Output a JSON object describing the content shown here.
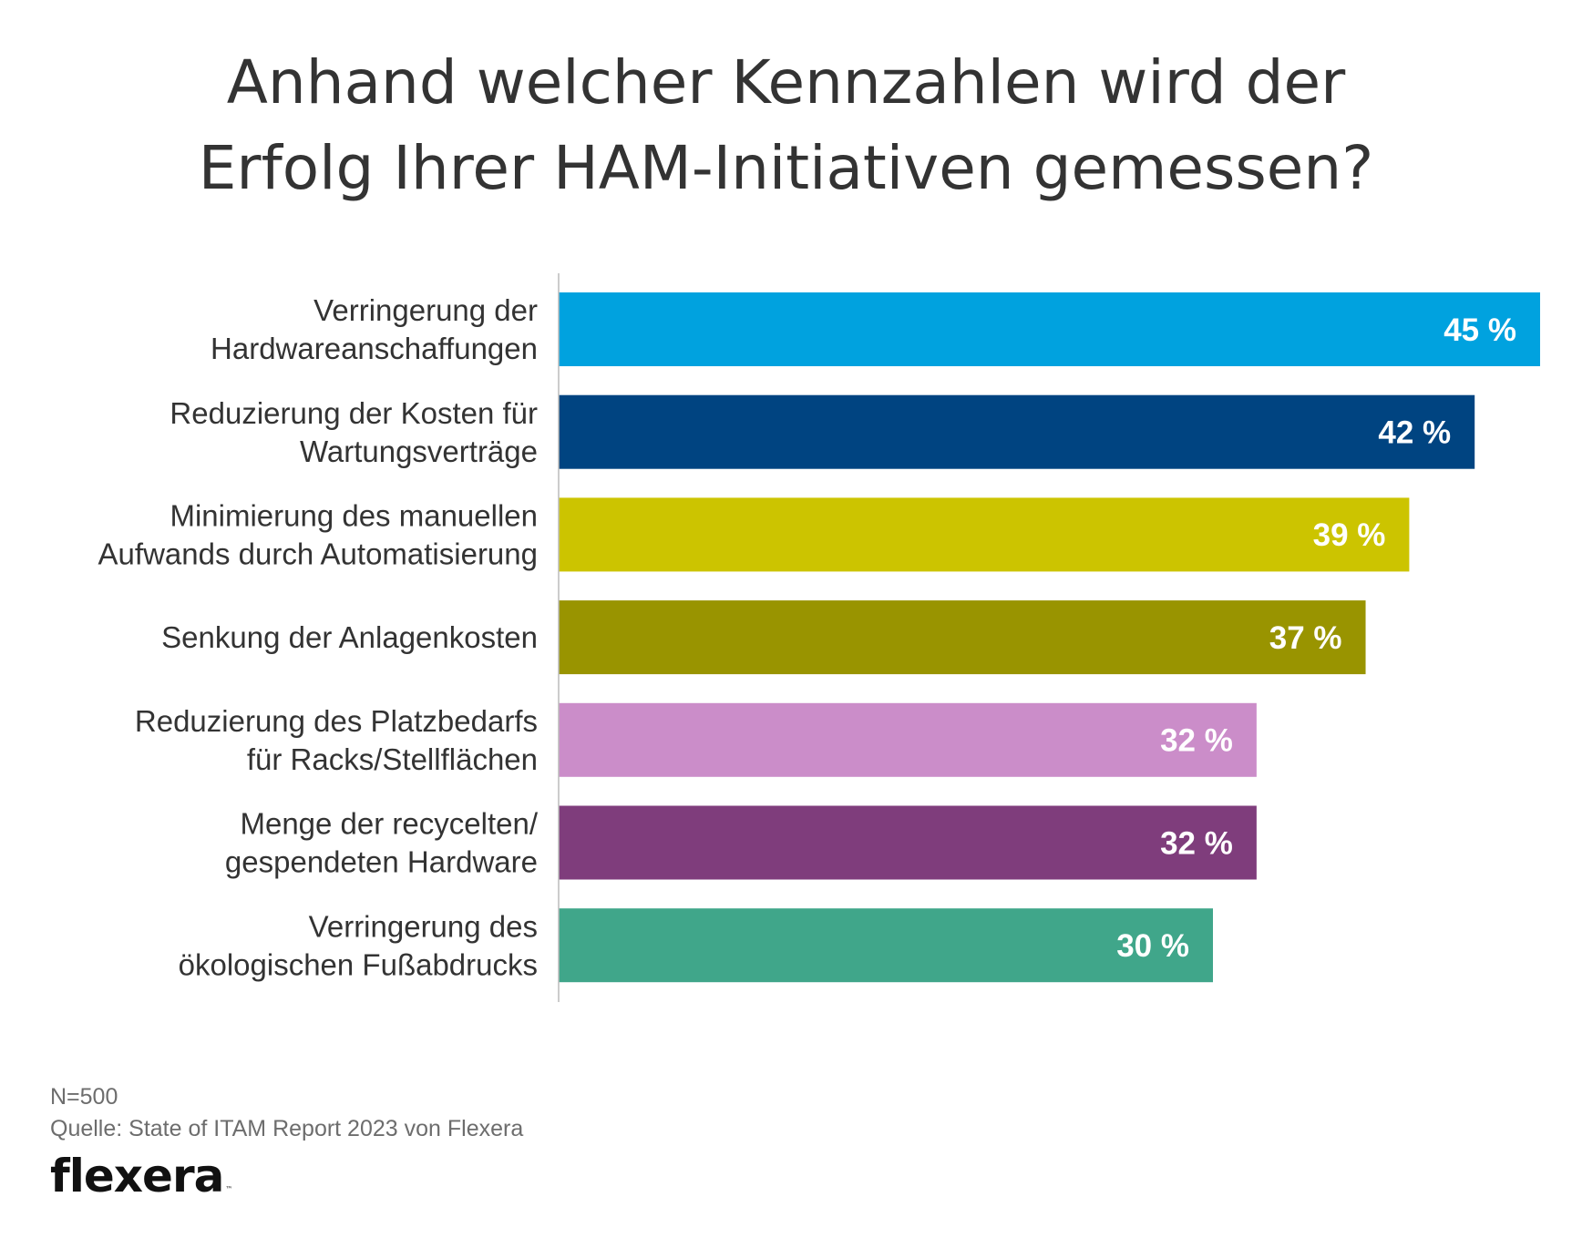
{
  "title_lines": [
    "Anhand welcher Kennzahlen wird der",
    "Erfolg Ihrer HAM-Initiativen gemessen?"
  ],
  "chart_data": {
    "type": "bar",
    "orientation": "horizontal",
    "title": "Anhand welcher Kennzahlen wird der Erfolg Ihrer HAM-Initiativen gemessen?",
    "categories": [
      [
        "Verringerung der",
        "Hardwareanschaffungen"
      ],
      [
        "Reduzierung der Kosten für",
        "Wartungsverträge"
      ],
      [
        "Minimierung des manuellen",
        "Aufwands durch Automatisierung"
      ],
      [
        "Senkung der Anlagenkosten"
      ],
      [
        "Reduzierung des Platzbedarfs",
        "für Racks/Stellflächen"
      ],
      [
        "Menge der recycelten/",
        "gespendeten Hardware"
      ],
      [
        "Verringerung des",
        "ökologischen Fußabdrucks"
      ]
    ],
    "values": [
      45,
      42,
      39,
      37,
      32,
      32,
      30
    ],
    "value_labels": [
      "45 %",
      "42 %",
      "39 %",
      "37 %",
      "32 %",
      "32 %",
      "30 %"
    ],
    "unit": "%",
    "colors": [
      "#00a2df",
      "#004481",
      "#ccc400",
      "#999400",
      "#cb8dc9",
      "#7f3d7c",
      "#40a68a"
    ],
    "axis_color": "#bbbbbb",
    "grid": false,
    "legend": "none"
  },
  "footer": {
    "sample": "N=500",
    "source": "Quelle: State of ITAM Report 2023 von Flexera"
  },
  "logo": {
    "text": "flexera",
    "tm": "™"
  }
}
